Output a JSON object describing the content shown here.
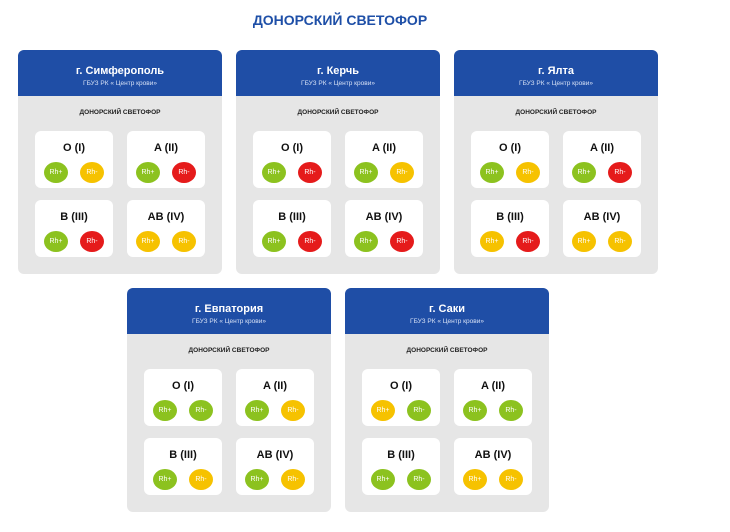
{
  "title": "ДОНОРСКИЙ СВЕТОФОР",
  "colors": {
    "green": "#8cc21f",
    "yellow": "#f6c200",
    "red": "#e51b1b",
    "header": "#1f4ea6"
  },
  "cards": [
    {
      "city": "г. Симферополь",
      "org": "ГБУЗ РК « Центр крови»",
      "subtitle": "ДОНОРСКИЙ СВЕТОФОР",
      "groups": [
        {
          "name": "O (I)",
          "items": [
            {
              "label": "Rh+",
              "status": "green"
            },
            {
              "label": "Rh-",
              "status": "yellow"
            }
          ]
        },
        {
          "name": "A (II)",
          "items": [
            {
              "label": "Rh+",
              "status": "green"
            },
            {
              "label": "Rh-",
              "status": "red"
            }
          ]
        },
        {
          "name": "B (III)",
          "items": [
            {
              "label": "Rh+",
              "status": "green"
            },
            {
              "label": "Rh-",
              "status": "red"
            }
          ]
        },
        {
          "name": "AB (IV)",
          "items": [
            {
              "label": "Rh+",
              "status": "yellow"
            },
            {
              "label": "Rh-",
              "status": "yellow"
            }
          ]
        }
      ]
    },
    {
      "city": "г. Керчь",
      "org": "ГБУЗ РК « Центр крови»",
      "subtitle": "ДОНОРСКИЙ СВЕТОФОР",
      "groups": [
        {
          "name": "O (I)",
          "items": [
            {
              "label": "Rh+",
              "status": "green"
            },
            {
              "label": "Rh-",
              "status": "red"
            }
          ]
        },
        {
          "name": "A (II)",
          "items": [
            {
              "label": "Rh+",
              "status": "green"
            },
            {
              "label": "Rh-",
              "status": "yellow"
            }
          ]
        },
        {
          "name": "B (III)",
          "items": [
            {
              "label": "Rh+",
              "status": "green"
            },
            {
              "label": "Rh-",
              "status": "red"
            }
          ]
        },
        {
          "name": "AB (IV)",
          "items": [
            {
              "label": "Rh+",
              "status": "green"
            },
            {
              "label": "Rh-",
              "status": "red"
            }
          ]
        }
      ]
    },
    {
      "city": "г. Ялта",
      "org": "ГБУЗ РК « Центр крови»",
      "subtitle": "ДОНОРСКИЙ СВЕТОФОР",
      "groups": [
        {
          "name": "O (I)",
          "items": [
            {
              "label": "Rh+",
              "status": "green"
            },
            {
              "label": "Rh-",
              "status": "yellow"
            }
          ]
        },
        {
          "name": "A (II)",
          "items": [
            {
              "label": "Rh+",
              "status": "green"
            },
            {
              "label": "Rh-",
              "status": "red"
            }
          ]
        },
        {
          "name": "B (III)",
          "items": [
            {
              "label": "Rh+",
              "status": "yellow"
            },
            {
              "label": "Rh-",
              "status": "red"
            }
          ]
        },
        {
          "name": "AB (IV)",
          "items": [
            {
              "label": "Rh+",
              "status": "yellow"
            },
            {
              "label": "Rh-",
              "status": "yellow"
            }
          ]
        }
      ]
    },
    {
      "city": "г. Евпатория",
      "org": "ГБУЗ РК « Центр крови»",
      "subtitle": "ДОНОРСКИЙ СВЕТОФОР",
      "groups": [
        {
          "name": "O (I)",
          "items": [
            {
              "label": "Rh+",
              "status": "green"
            },
            {
              "label": "Rh-",
              "status": "green"
            }
          ]
        },
        {
          "name": "A (II)",
          "items": [
            {
              "label": "Rh+",
              "status": "green"
            },
            {
              "label": "Rh-",
              "status": "yellow"
            }
          ]
        },
        {
          "name": "B (III)",
          "items": [
            {
              "label": "Rh+",
              "status": "green"
            },
            {
              "label": "Rh-",
              "status": "yellow"
            }
          ]
        },
        {
          "name": "AB (IV)",
          "items": [
            {
              "label": "Rh+",
              "status": "green"
            },
            {
              "label": "Rh-",
              "status": "yellow"
            }
          ]
        }
      ]
    },
    {
      "city": "г. Саки",
      "org": "ГБУЗ РК « Центр крови»",
      "subtitle": "ДОНОРСКИЙ СВЕТОФОР",
      "groups": [
        {
          "name": "O (I)",
          "items": [
            {
              "label": "Rh+",
              "status": "yellow"
            },
            {
              "label": "Rh-",
              "status": "green"
            }
          ]
        },
        {
          "name": "A (II)",
          "items": [
            {
              "label": "Rh+",
              "status": "green"
            },
            {
              "label": "Rh-",
              "status": "green"
            }
          ]
        },
        {
          "name": "B (III)",
          "items": [
            {
              "label": "Rh+",
              "status": "green"
            },
            {
              "label": "Rh-",
              "status": "green"
            }
          ]
        },
        {
          "name": "AB (IV)",
          "items": [
            {
              "label": "Rh+",
              "status": "yellow"
            },
            {
              "label": "Rh-",
              "status": "yellow"
            }
          ]
        }
      ]
    }
  ]
}
